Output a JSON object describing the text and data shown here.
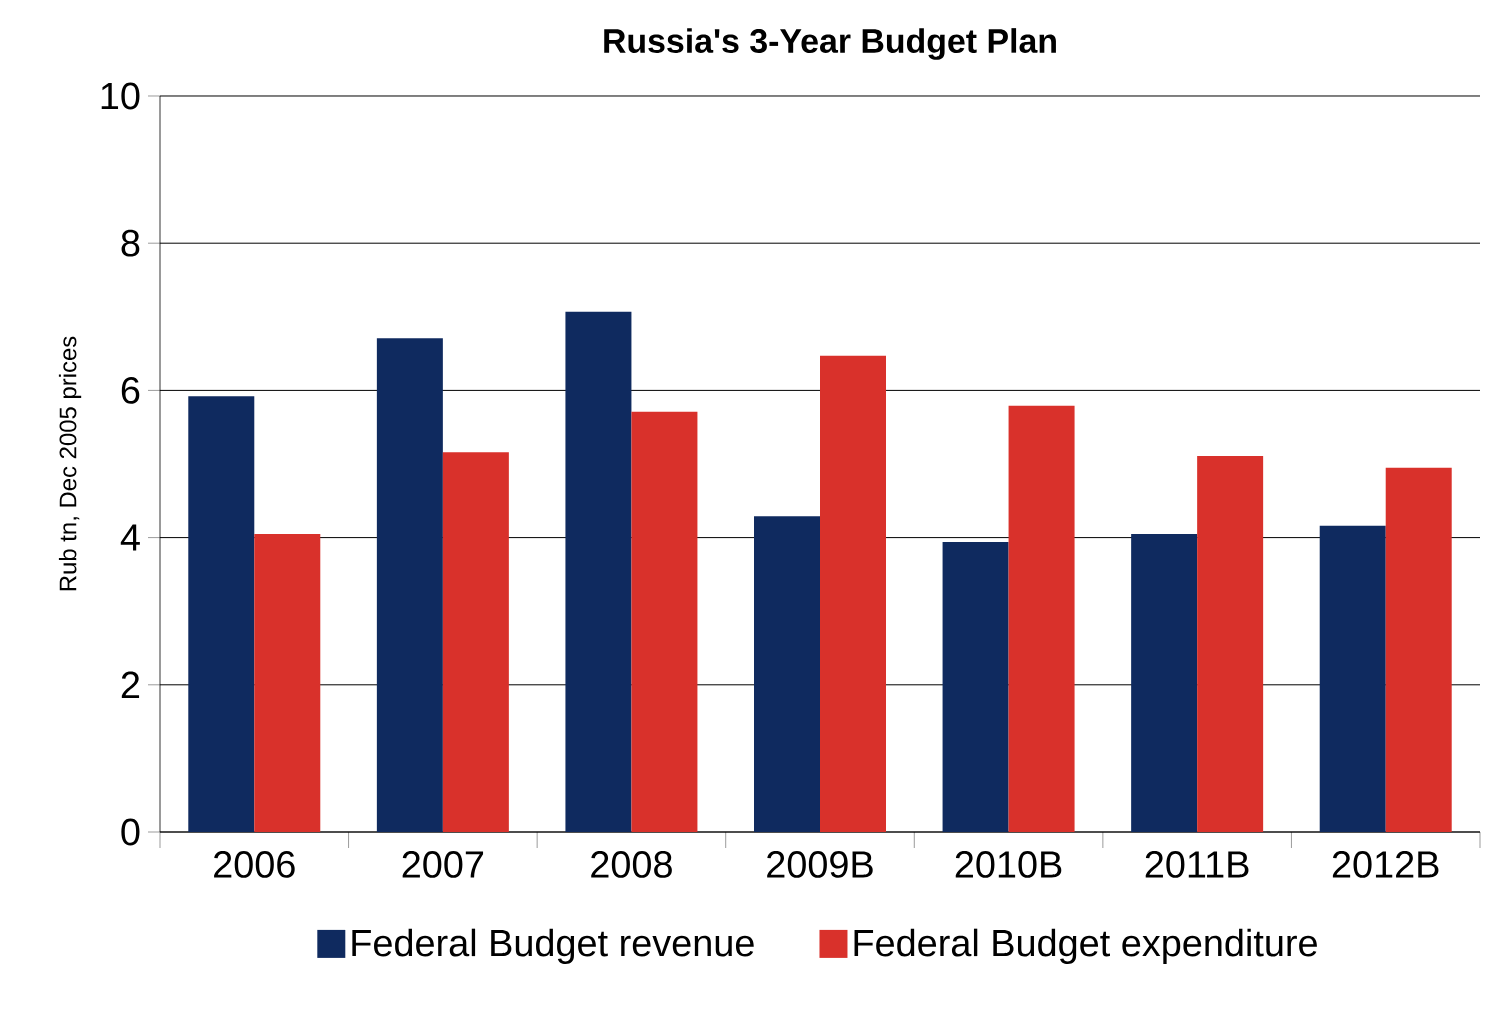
{
  "chart_data": {
    "type": "bar",
    "title": "Russia's 3-Year Budget Plan",
    "ylabel": "Rub tn, Dec 2005 prices",
    "categories": [
      "2006",
      "2007",
      "2008",
      "2009B",
      "2010B",
      "2011B",
      "2012B"
    ],
    "series": [
      {
        "name": "Federal Budget revenue",
        "color": "#0f2a5f",
        "values": [
          5.92,
          6.71,
          7.07,
          4.29,
          3.94,
          4.05,
          4.16
        ]
      },
      {
        "name": "Federal Budget expenditure",
        "color": "#d9312b",
        "values": [
          4.05,
          5.16,
          5.71,
          6.47,
          5.79,
          5.11,
          4.95
        ]
      }
    ],
    "ylim": [
      0,
      10
    ],
    "yticks": [
      0,
      2,
      4,
      6,
      8,
      10
    ],
    "grid": "y",
    "legend": "bottom"
  }
}
